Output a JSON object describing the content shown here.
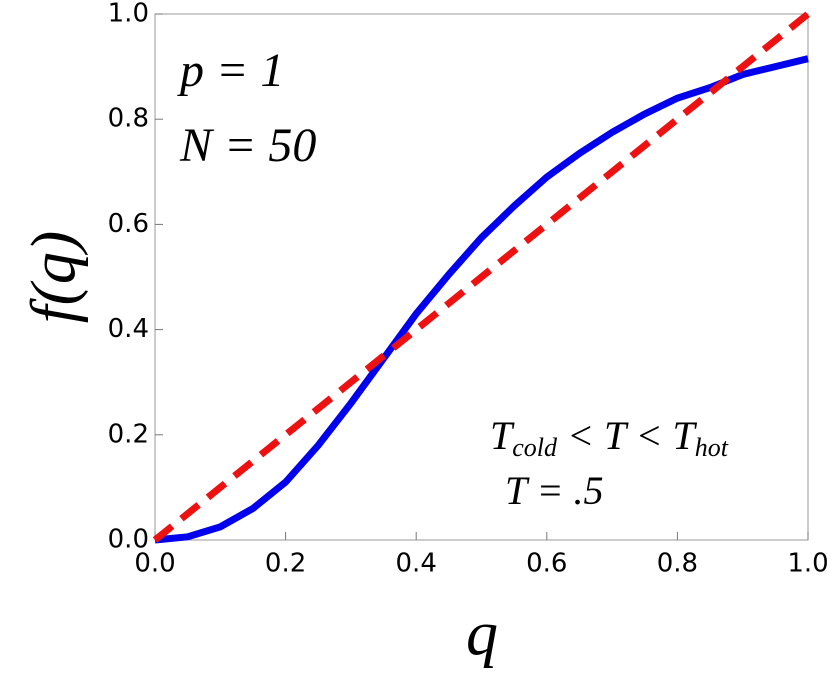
{
  "chart_data": {
    "type": "line",
    "xlabel": "q",
    "ylabel": "f(q)",
    "annotations": [
      "p = 1",
      "N = 50",
      "T = .5"
    ],
    "condition": [
      "T",
      "cold",
      " < T < ",
      "T",
      "hot"
    ],
    "x": [
      0,
      0.05,
      0.1,
      0.15,
      0.2,
      0.25,
      0.3,
      0.35,
      0.4,
      0.45,
      0.5,
      0.55,
      0.6,
      0.65,
      0.7,
      0.75,
      0.8,
      0.85,
      0.9,
      0.95,
      1
    ],
    "series": [
      {
        "color": "#0000ee",
        "dash": false,
        "values": [
          0,
          0.006,
          0.025,
          0.06,
          0.11,
          0.18,
          0.26,
          0.345,
          0.43,
          0.505,
          0.575,
          0.635,
          0.69,
          0.735,
          0.775,
          0.81,
          0.84,
          0.86,
          0.885,
          0.9,
          0.915
        ]
      },
      {
        "color": "#ee1111",
        "dash": true,
        "values": [
          0,
          0.05,
          0.1,
          0.15,
          0.2,
          0.25,
          0.3,
          0.35,
          0.4,
          0.45,
          0.5,
          0.55,
          0.6,
          0.65,
          0.7,
          0.75,
          0.8,
          0.85,
          0.9,
          0.95,
          1
        ]
      }
    ],
    "xlim": [
      0,
      1
    ],
    "ylim": [
      0,
      1
    ],
    "xticks": [
      {
        "value": 0,
        "label": "0.0"
      },
      0.2,
      0.4,
      0.6,
      0.8,
      {
        "value": 1,
        "label": "1.0"
      }
    ],
    "yticks": [
      {
        "value": 0,
        "label": "0.0"
      },
      0.2,
      0.4,
      0.6,
      0.8,
      {
        "value": 1,
        "label": "1.0"
      }
    ]
  }
}
